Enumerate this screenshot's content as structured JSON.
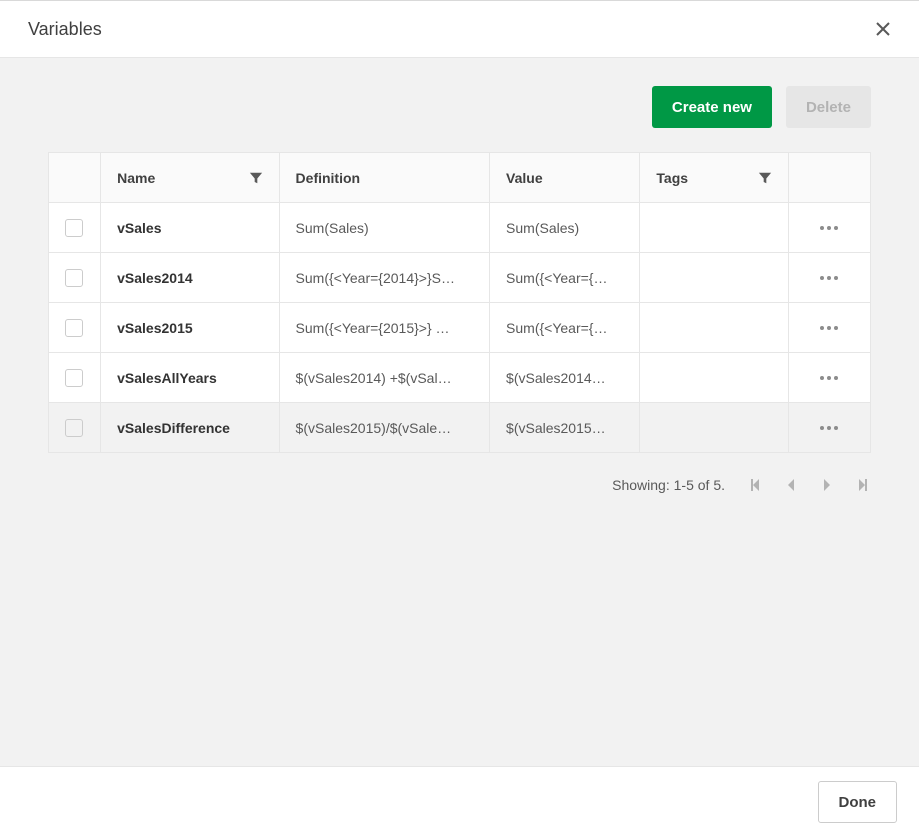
{
  "dialog": {
    "title": "Variables"
  },
  "toolbar": {
    "create_label": "Create new",
    "delete_label": "Delete"
  },
  "table": {
    "columns": {
      "name": "Name",
      "definition": "Definition",
      "value": "Value",
      "tags": "Tags"
    },
    "rows": [
      {
        "name": "vSales",
        "definition": "Sum(Sales)",
        "value": "Sum(Sales)",
        "tags": "",
        "selected": false
      },
      {
        "name": "vSales2014",
        "definition": "Sum({<Year={2014}>}S…",
        "value": "Sum({<Year={…",
        "tags": "",
        "selected": false
      },
      {
        "name": "vSales2015",
        "definition": "Sum({<Year={2015}>} …",
        "value": "Sum({<Year={…",
        "tags": "",
        "selected": false
      },
      {
        "name": "vSalesAllYears",
        "definition": "$(vSales2014) +$(vSal…",
        "value": "$(vSales2014…",
        "tags": "",
        "selected": false
      },
      {
        "name": "vSalesDifference",
        "definition": "$(vSales2015)/$(vSale…",
        "value": "$(vSales2015…",
        "tags": "",
        "selected": true
      }
    ]
  },
  "pager": {
    "showing": "Showing: 1-5 of 5."
  },
  "footer": {
    "done_label": "Done"
  },
  "colors": {
    "primary": "#009845",
    "border": "#e6e6e6",
    "body_bg": "#f2f2f2",
    "disabled_bg": "#e6e6e6",
    "disabled_fg": "#b3b3b3"
  }
}
